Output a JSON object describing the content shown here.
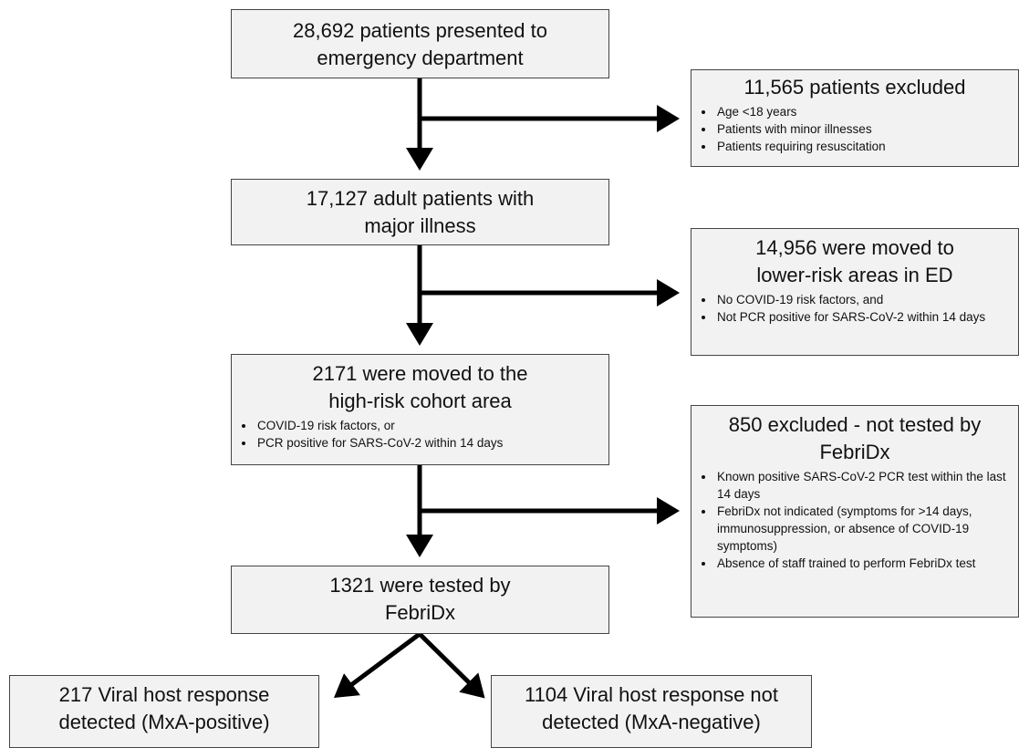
{
  "nodes": [
    {
      "title": [
        "28,692 patients presented to",
        "emergency department"
      ],
      "bullets": []
    },
    {
      "title": [
        "11,565 patients excluded"
      ],
      "bullets": [
        "Age <18 years",
        "Patients with minor illnesses",
        "Patients requiring resuscitation"
      ]
    },
    {
      "title": [
        "17,127 adult patients with",
        "major illness"
      ],
      "bullets": []
    },
    {
      "title": [
        "14,956 were moved to",
        "lower-risk areas in ED"
      ],
      "bullets": [
        "No COVID-19 risk factors, and",
        "Not PCR positive for SARS-CoV-2 within 14 days"
      ]
    },
    {
      "title": [
        "2171 were moved to the",
        "high-risk cohort area"
      ],
      "bullets": [
        "COVID-19 risk factors, or",
        "PCR positive for SARS-CoV-2 within 14 days"
      ]
    },
    {
      "title": [
        "850 excluded  - not tested by",
        "FebriDx"
      ],
      "bullets": [
        "Known positive SARS-CoV-2 PCR test within the last 14 days",
        "FebriDx not indicated (symptoms for >14 days, immunosuppression, or absence of COVID-19 symptoms)",
        "Absence of staff trained to perform FebriDx test"
      ]
    },
    {
      "title": [
        "1321 were tested by",
        "FebriDx"
      ],
      "bullets": []
    },
    {
      "title": [
        "217 Viral host response",
        "detected (MxA-positive)"
      ],
      "bullets": []
    },
    {
      "title": [
        "1104 Viral host response not",
        "detected (MxA-negative)"
      ],
      "bullets": []
    }
  ]
}
